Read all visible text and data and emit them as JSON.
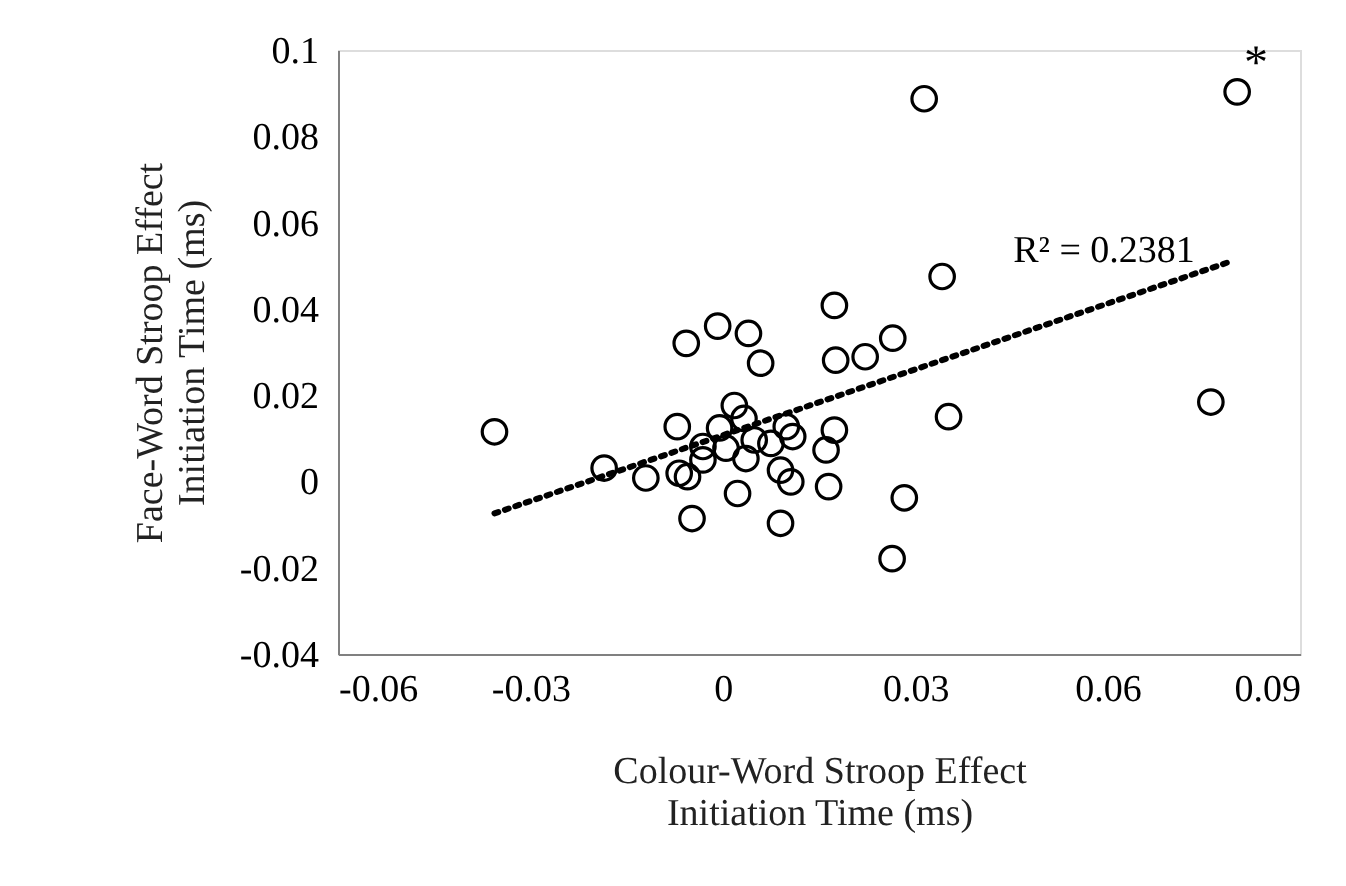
{
  "chart_data": {
    "type": "scatter",
    "xlabel": "Colour-Word Stroop Effect\nInitiation Time (ms)",
    "ylabel": "Face-Word Stroop Effect\nInitiation Time (ms)",
    "xlim": [
      -0.06,
      0.09
    ],
    "xticks": [
      -0.06,
      -0.03,
      0,
      0.03,
      0.06,
      0.09
    ],
    "ylim": [
      -0.04,
      0.1
    ],
    "yticks": [
      -0.04,
      -0.02,
      0,
      0.02,
      0.04,
      0.06,
      0.08,
      0.1
    ],
    "grid": false,
    "series": [
      {
        "color": "#000000",
        "marker": "circle",
        "x": [
          -0.0356,
          -0.0185,
          -0.012,
          -0.0071,
          -0.0057,
          -0.0008,
          0.004,
          0.0059,
          0.0174,
          0.0342,
          0.0176,
          0.0222,
          0.0265,
          0.0352,
          0.0283,
          0.0264,
          0.0165,
          0.009,
          -0.0048,
          0.0023,
          0.0106,
          0.009,
          0.0161,
          0.0174,
          0.0099,
          0.0109,
          0.0075,
          0.0049,
          0.0018,
          0.0033,
          -0.0005,
          0.0005,
          -0.0031,
          -0.0031,
          0.0036,
          -0.0068,
          -0.0055,
          0.0314,
          0.0802,
          0.0761
        ],
        "values": [
          0.0115,
          0.0031,
          0.0008,
          0.0127,
          0.032,
          0.036,
          0.0343,
          0.0274,
          0.0408,
          0.0475,
          0.0281,
          0.0289,
          0.0332,
          0.015,
          -0.0038,
          -0.0179,
          -0.0012,
          -0.0097,
          -0.0086,
          -0.0028,
          -0.0001,
          0.0026,
          0.0073,
          0.0119,
          0.0127,
          0.0104,
          0.0088,
          0.0096,
          0.0176,
          0.0146,
          0.0124,
          0.0077,
          0.0081,
          0.005,
          0.0053,
          0.0019,
          0.0011,
          0.0887,
          0.0903,
          0.0184
        ]
      },
      {
        "type": "line",
        "color": "#000000",
        "line_style": "dotted",
        "x": [
          -0.0356,
          0.0792
        ],
        "values": [
          -0.0074,
          0.051
        ]
      }
    ],
    "annotations": [
      "R² = 0.2381",
      "*"
    ]
  }
}
